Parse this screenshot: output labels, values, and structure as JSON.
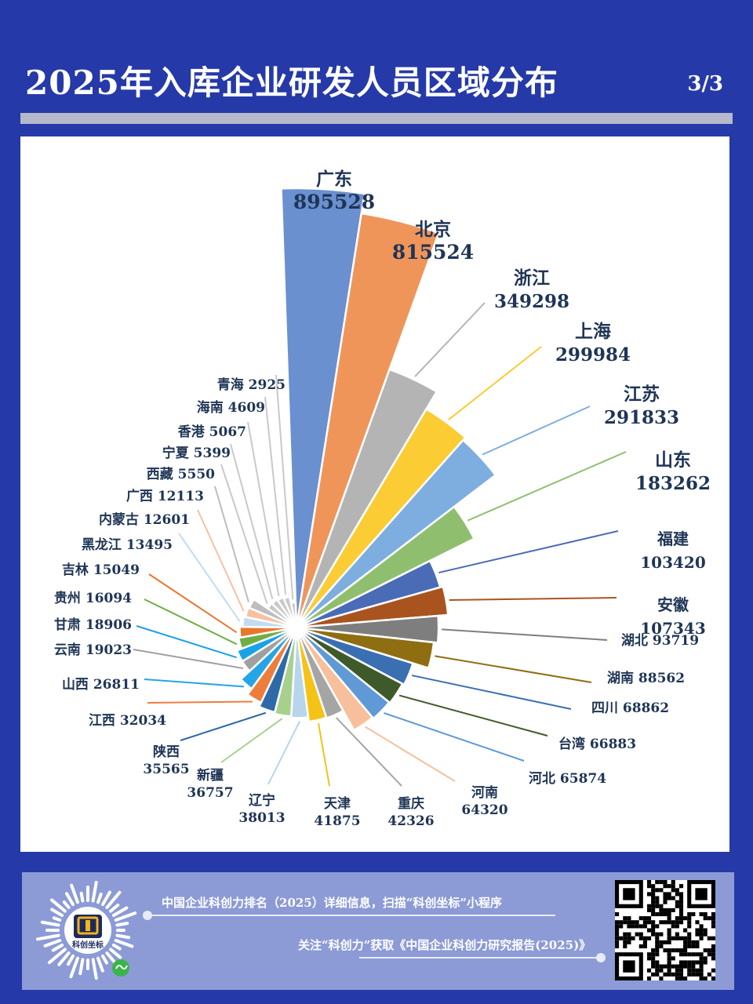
{
  "header": {
    "title": "2025年入库企业研发人员区域分布",
    "page": "3/3"
  },
  "footer": {
    "line1": "中国企业科创力排名（2025）详细信息，扫描“科创坐标”小程序",
    "line2": "关注“科创力”获取《中国企业科创力研究报告(2025)》",
    "logo_text": "科创坐标"
  },
  "colors": {
    "background": "#2639a8",
    "panel": "#ffffff",
    "footer": "#8c9bd6",
    "label": "#1f3556"
  },
  "chart_data": {
    "type": "pie",
    "variant": "polar-area",
    "title": "2025年入库企业研发人员区域分布",
    "series": [
      {
        "name": "广东",
        "value": 895528,
        "color": "#6a90d0",
        "label": "广东",
        "value_label": "895528"
      },
      {
        "name": "北京",
        "value": 815524,
        "color": "#f0955a",
        "label": "北京",
        "value_label": "815524"
      },
      {
        "name": "浙江",
        "value": 349298,
        "color": "#b4b4b4",
        "label": "浙江",
        "value_label": "349298"
      },
      {
        "name": "上海",
        "value": 299984,
        "color": "#fbcc33",
        "label": "上海",
        "value_label": "299984"
      },
      {
        "name": "江苏",
        "value": 291833,
        "color": "#7eaee0",
        "label": "江苏",
        "value_label": "291833"
      },
      {
        "name": "山东",
        "value": 183262,
        "color": "#8fbf6e",
        "label": "山东",
        "value_label": "183262"
      },
      {
        "name": "福建",
        "value": 103420,
        "color": "#4a6bb5",
        "label": "福建",
        "value_label": "103420"
      },
      {
        "name": "安徽",
        "value": 107343,
        "color": "#a9541f",
        "label": "安徽",
        "value_label": "107343"
      },
      {
        "name": "湖北",
        "value": 93719,
        "color": "#7e7e7e",
        "label": "湖北 93719"
      },
      {
        "name": "湖南",
        "value": 88562,
        "color": "#8f6e12",
        "label": "湖南 88562"
      },
      {
        "name": "四川",
        "value": 68862,
        "color": "#3a6fb2",
        "label": "四川 68862"
      },
      {
        "name": "台湾",
        "value": 66883,
        "color": "#3f5a2a",
        "label": "台湾 66883"
      },
      {
        "name": "河北",
        "value": 65874,
        "color": "#5f9ad6",
        "label": "河北 65874"
      },
      {
        "name": "河南",
        "value": 64320,
        "color": "#f7bf9c",
        "label": "河南",
        "value_label": "64320"
      },
      {
        "name": "重庆",
        "value": 42326,
        "color": "#a5a5a5",
        "label": "重庆",
        "value_label": "42326"
      },
      {
        "name": "天津",
        "value": 41875,
        "color": "#f5c217",
        "label": "天津",
        "value_label": "41875"
      },
      {
        "name": "辽宁",
        "value": 38013,
        "color": "#b7d6ec",
        "label": "辽宁",
        "value_label": "38013"
      },
      {
        "name": "新疆",
        "value": 36757,
        "color": "#a8d08d",
        "label": "新疆",
        "value_label": "36757"
      },
      {
        "name": "陕西",
        "value": 35565,
        "color": "#2e6aa8",
        "label": "陕西",
        "value_label": "35565"
      },
      {
        "name": "江西",
        "value": 32034,
        "color": "#ee7d3c",
        "label": "江西 32034"
      },
      {
        "name": "山西",
        "value": 26811,
        "color": "#26a5e6",
        "label": "山西 26811"
      },
      {
        "name": "云南",
        "value": 19023,
        "color": "#a0a0a0",
        "label": "云南 19023"
      },
      {
        "name": "甘肃",
        "value": 18906,
        "color": "#1aa2e8",
        "label": "甘肃 18906"
      },
      {
        "name": "贵州",
        "value": 16094,
        "color": "#6fae45",
        "label": "贵州 16094"
      },
      {
        "name": "吉林",
        "value": 15049,
        "color": "#e8772e",
        "label": "吉林 15049"
      },
      {
        "name": "黑龙江",
        "value": 13495,
        "color": "#c3dcef",
        "label": "黑龙江 13495"
      },
      {
        "name": "内蒙古",
        "value": 12601,
        "color": "#f6c2a3",
        "label": "内蒙古 12601"
      },
      {
        "name": "广西",
        "value": 12113,
        "color": "#bdbdbd",
        "label": "广西 12113"
      },
      {
        "name": "西藏",
        "value": 5550,
        "color": "#c9c9c9",
        "label": "西藏 5550"
      },
      {
        "name": "宁夏",
        "value": 5399,
        "color": "#c9c9c9",
        "label": "宁夏 5399"
      },
      {
        "name": "香港",
        "value": 5067,
        "color": "#c9c9c9",
        "label": "香港 5067"
      },
      {
        "name": "海南",
        "value": 4609,
        "color": "#c9c9c9",
        "label": "海南 4609"
      },
      {
        "name": "青海",
        "value": 2925,
        "color": "#c9c9c9",
        "label": "青海 2925"
      }
    ]
  }
}
